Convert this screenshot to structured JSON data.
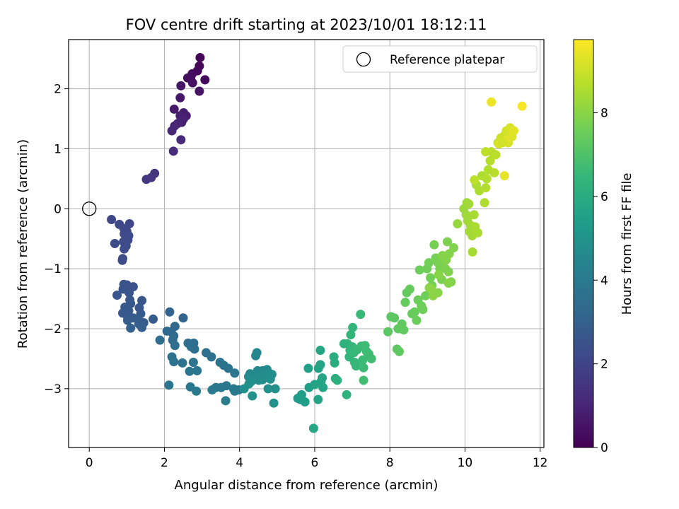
{
  "chart_data": {
    "type": "scatter",
    "title": "FOV centre drift starting at 2023/10/01 18:12:11",
    "xlabel": "Angular distance from reference (arcmin)",
    "ylabel": "Rotation from reference (arcmin)",
    "xlim": [
      -0.55,
      12.1
    ],
    "ylim": [
      -3.98,
      2.82
    ],
    "xticks": [
      0,
      2,
      4,
      6,
      8,
      10,
      12
    ],
    "yticks": [
      -3,
      -2,
      -1,
      0,
      1,
      2
    ],
    "grid": true,
    "legend": {
      "position": "top-right",
      "entries": [
        "Reference platepar"
      ]
    },
    "reference_point": {
      "x": 0,
      "y": 0
    },
    "colorbar": {
      "label": "Hours from first FF file",
      "range": [
        0,
        9.75
      ],
      "ticks": [
        0,
        2,
        4,
        6,
        8
      ],
      "colormap": "viridis"
    },
    "colormap_stops": [
      "#440154",
      "#482878",
      "#3e4989",
      "#31688e",
      "#26828e",
      "#1f9e89",
      "#35b779",
      "#6ece58",
      "#b5de2b",
      "#fde725"
    ],
    "series_points": [
      [
        2.95,
        2.52,
        0.1
      ],
      [
        2.93,
        2.38,
        0.15
      ],
      [
        2.88,
        2.3,
        0.2
      ],
      [
        2.74,
        2.25,
        0.3
      ],
      [
        2.7,
        2.18,
        0.35
      ],
      [
        2.62,
        2.18,
        0.4
      ],
      [
        3.08,
        2.15,
        0.25
      ],
      [
        2.75,
        2.1,
        0.45
      ],
      [
        2.44,
        2.05,
        0.55
      ],
      [
        2.93,
        1.96,
        0.5
      ],
      [
        2.42,
        1.85,
        0.6
      ],
      [
        2.26,
        1.66,
        0.7
      ],
      [
        2.51,
        1.6,
        0.8
      ],
      [
        2.42,
        1.55,
        0.85
      ],
      [
        2.58,
        1.55,
        0.8
      ],
      [
        2.51,
        1.5,
        0.9
      ],
      [
        2.46,
        1.44,
        0.95
      ],
      [
        2.35,
        1.42,
        1.0
      ],
      [
        2.27,
        1.38,
        1.05
      ],
      [
        2.2,
        1.3,
        1.1
      ],
      [
        2.44,
        1.15,
        1.15
      ],
      [
        2.24,
        0.96,
        1.2
      ],
      [
        1.74,
        0.59,
        1.5
      ],
      [
        1.65,
        0.52,
        1.55
      ],
      [
        1.52,
        0.49,
        1.6
      ],
      [
        0.59,
        -0.18,
        2.1
      ],
      [
        0.8,
        -0.26,
        2.12
      ],
      [
        1.07,
        -0.25,
        2.15
      ],
      [
        0.92,
        -0.33,
        2.16
      ],
      [
        1.0,
        -0.38,
        2.18
      ],
      [
        0.93,
        -0.42,
        2.2
      ],
      [
        1.05,
        -0.45,
        2.2
      ],
      [
        1.03,
        -0.52,
        2.22
      ],
      [
        0.91,
        -0.55,
        2.24
      ],
      [
        0.68,
        -0.58,
        2.26
      ],
      [
        0.98,
        -0.62,
        2.27
      ],
      [
        0.93,
        -0.67,
        2.28
      ],
      [
        0.89,
        -0.83,
        2.3
      ],
      [
        0.88,
        -0.86,
        2.3
      ],
      [
        0.92,
        -1.26,
        2.5
      ],
      [
        1.0,
        -1.27,
        2.52
      ],
      [
        1.17,
        -1.3,
        2.55
      ],
      [
        0.9,
        -1.34,
        2.56
      ],
      [
        1.06,
        -1.4,
        2.58
      ],
      [
        0.74,
        -1.44,
        2.6
      ],
      [
        1.08,
        -1.52,
        2.62
      ],
      [
        1.4,
        -1.53,
        2.64
      ],
      [
        1.1,
        -1.58,
        2.66
      ],
      [
        0.95,
        -1.64,
        2.68
      ],
      [
        1.33,
        -1.65,
        2.7
      ],
      [
        1.05,
        -1.7,
        2.72
      ],
      [
        0.89,
        -1.74,
        2.74
      ],
      [
        1.37,
        -1.75,
        2.76
      ],
      [
        1.02,
        -1.8,
        2.78
      ],
      [
        1.17,
        -1.82,
        2.8
      ],
      [
        1.3,
        -1.84,
        2.82
      ],
      [
        1.7,
        -1.84,
        2.84
      ],
      [
        1.02,
        -1.86,
        2.86
      ],
      [
        1.45,
        -1.9,
        2.88
      ],
      [
        1.32,
        -1.92,
        2.9
      ],
      [
        1.4,
        -1.98,
        2.92
      ],
      [
        1.1,
        -1.99,
        2.94
      ],
      [
        2.14,
        -1.72,
        3.1
      ],
      [
        2.5,
        -1.82,
        3.15
      ],
      [
        2.28,
        -1.96,
        3.2
      ],
      [
        2.07,
        -2.04,
        3.25
      ],
      [
        2.18,
        -2.05,
        3.3
      ],
      [
        2.25,
        -2.12,
        3.35
      ],
      [
        1.88,
        -2.19,
        3.4
      ],
      [
        2.22,
        -2.19,
        3.42
      ],
      [
        2.63,
        -2.24,
        3.45
      ],
      [
        2.78,
        -2.24,
        3.48
      ],
      [
        2.28,
        -2.28,
        3.5
      ],
      [
        2.71,
        -2.3,
        3.52
      ],
      [
        2.8,
        -2.34,
        3.55
      ],
      [
        3.11,
        -2.4,
        3.58
      ],
      [
        2.2,
        -2.47,
        3.6
      ],
      [
        3.25,
        -2.47,
        3.62
      ],
      [
        2.25,
        -2.55,
        3.65
      ],
      [
        2.48,
        -2.57,
        3.68
      ],
      [
        2.77,
        -2.56,
        3.7
      ],
      [
        3.48,
        -2.56,
        3.72
      ],
      [
        3.58,
        -2.61,
        3.74
      ],
      [
        3.7,
        -2.66,
        3.76
      ],
      [
        2.67,
        -2.71,
        3.78
      ],
      [
        2.87,
        -2.7,
        3.8
      ],
      [
        3.87,
        -2.74,
        3.82
      ],
      [
        2.12,
        -2.94,
        3.84
      ],
      [
        2.69,
        -2.97,
        3.86
      ],
      [
        3.37,
        -2.98,
        3.88
      ],
      [
        3.51,
        -2.98,
        3.9
      ],
      [
        3.65,
        -2.95,
        3.92
      ],
      [
        3.84,
        -3.0,
        3.94
      ],
      [
        3.98,
        -3.02,
        3.96
      ],
      [
        2.85,
        -3.04,
        3.98
      ],
      [
        3.27,
        -3.02,
        4.0
      ],
      [
        3.87,
        -3.04,
        4.02
      ],
      [
        3.63,
        -3.2,
        4.04
      ],
      [
        4.46,
        -2.4,
        4.5
      ],
      [
        4.43,
        -2.45,
        4.52
      ],
      [
        4.28,
        -2.75,
        4.55
      ],
      [
        4.48,
        -2.7,
        4.58
      ],
      [
        4.61,
        -2.7,
        4.6
      ],
      [
        4.73,
        -2.68,
        4.62
      ],
      [
        4.24,
        -2.8,
        4.64
      ],
      [
        4.43,
        -2.78,
        4.66
      ],
      [
        4.54,
        -2.77,
        4.68
      ],
      [
        4.64,
        -2.78,
        4.7
      ],
      [
        4.37,
        -2.85,
        4.72
      ],
      [
        4.51,
        -2.86,
        4.74
      ],
      [
        4.61,
        -2.85,
        4.76
      ],
      [
        4.78,
        -2.74,
        4.78
      ],
      [
        4.86,
        -2.76,
        4.8
      ],
      [
        4.82,
        -2.84,
        4.82
      ],
      [
        4.31,
        -2.88,
        4.84
      ],
      [
        4.25,
        -2.92,
        4.86
      ],
      [
        4.12,
        -3.0,
        4.88
      ],
      [
        4.76,
        -3.0,
        4.9
      ],
      [
        4.95,
        -3.0,
        4.92
      ],
      [
        4.34,
        -3.12,
        4.94
      ],
      [
        4.91,
        -3.24,
        4.96
      ],
      [
        5.55,
        -3.16,
        5.3
      ],
      [
        5.62,
        -3.18,
        5.35
      ],
      [
        5.65,
        -3.1,
        5.4
      ],
      [
        5.85,
        -2.98,
        5.45
      ],
      [
        5.74,
        -3.22,
        5.5
      ],
      [
        5.83,
        -2.66,
        5.55
      ],
      [
        6.0,
        -2.93,
        5.6
      ],
      [
        6.1,
        -2.66,
        5.62
      ],
      [
        6.09,
        -3.18,
        5.64
      ],
      [
        6.15,
        -2.6,
        5.66
      ],
      [
        6.17,
        -2.88,
        5.68
      ],
      [
        6.2,
        -2.82,
        5.7
      ],
      [
        6.22,
        -2.98,
        5.72
      ],
      [
        6.15,
        -2.36,
        5.74
      ],
      [
        5.97,
        -3.66,
        5.76
      ],
      [
        6.51,
        -2.47,
        6.0
      ],
      [
        6.53,
        -2.57,
        6.05
      ],
      [
        6.55,
        -2.83,
        6.1
      ],
      [
        6.6,
        -2.86,
        6.15
      ],
      [
        6.78,
        -2.25,
        6.2
      ],
      [
        6.85,
        -3.1,
        6.25
      ],
      [
        6.87,
        -2.25,
        6.3
      ],
      [
        6.92,
        -2.47,
        6.35
      ],
      [
        6.94,
        -2.36,
        6.38
      ],
      [
        6.96,
        -2.1,
        6.4
      ],
      [
        7.01,
        -1.98,
        6.42
      ],
      [
        7.0,
        -2.3,
        6.45
      ],
      [
        7.04,
        -2.4,
        6.48
      ],
      [
        7.06,
        -2.56,
        6.5
      ],
      [
        7.1,
        -2.62,
        6.52
      ],
      [
        7.13,
        -2.35,
        6.55
      ],
      [
        7.22,
        -1.76,
        6.58
      ],
      [
        7.24,
        -2.29,
        6.6
      ],
      [
        7.28,
        -2.52,
        6.62
      ],
      [
        7.3,
        -2.65,
        6.64
      ],
      [
        7.34,
        -2.28,
        6.66
      ],
      [
        7.38,
        -2.38,
        6.68
      ],
      [
        7.44,
        -2.42,
        6.7
      ],
      [
        7.51,
        -2.5,
        6.72
      ],
      [
        7.3,
        -2.86,
        6.74
      ],
      [
        7.95,
        -2.05,
        7.2
      ],
      [
        8.03,
        -1.8,
        7.22
      ],
      [
        8.12,
        -1.82,
        7.24
      ],
      [
        8.19,
        -2.34,
        7.26
      ],
      [
        8.22,
        -2.0,
        7.28
      ],
      [
        8.25,
        -2.38,
        7.3
      ],
      [
        8.3,
        -2.0,
        7.32
      ],
      [
        8.32,
        -1.92,
        7.34
      ],
      [
        8.37,
        -2.02,
        7.36
      ],
      [
        8.41,
        -1.56,
        7.38
      ],
      [
        8.45,
        -1.4,
        7.4
      ],
      [
        8.53,
        -1.34,
        7.42
      ],
      [
        8.59,
        -1.75,
        7.44
      ],
      [
        8.66,
        -1.72,
        7.46
      ],
      [
        8.71,
        -1.86,
        7.48
      ],
      [
        8.75,
        -1.52,
        7.5
      ],
      [
        8.79,
        -1.02,
        7.52
      ],
      [
        8.84,
        -1.62,
        7.54
      ],
      [
        8.88,
        -1.68,
        7.56
      ],
      [
        8.95,
        -1.45,
        7.58
      ],
      [
        8.99,
        -1.0,
        7.6
      ],
      [
        9.04,
        -0.9,
        7.62
      ],
      [
        9.08,
        -1.15,
        7.64
      ],
      [
        9.12,
        -1.28,
        7.66
      ],
      [
        9.18,
        -0.6,
        7.68
      ],
      [
        9.22,
        -0.82,
        7.7
      ],
      [
        9.28,
        -0.9,
        7.72
      ],
      [
        9.33,
        -1.0,
        7.74
      ],
      [
        9.38,
        -1.18,
        7.76
      ],
      [
        9.44,
        -0.88,
        7.78
      ],
      [
        9.48,
        -1.0,
        7.8
      ],
      [
        9.53,
        -0.55,
        7.82
      ],
      [
        9.56,
        -1.05,
        7.84
      ],
      [
        9.63,
        -1.22,
        7.86
      ],
      [
        9.7,
        -0.65,
        7.88
      ],
      [
        9.58,
        -0.75,
        7.9
      ],
      [
        9.4,
        -0.78,
        7.92
      ],
      [
        9.5,
        -0.85,
        7.94
      ],
      [
        9.56,
        -1.24,
        7.96
      ],
      [
        9.3,
        -1.1,
        7.98
      ],
      [
        9.28,
        -1.4,
        8.0
      ],
      [
        9.15,
        -1.45,
        8.02
      ],
      [
        9.1,
        -1.33,
        8.04
      ],
      [
        9.05,
        -1.32,
        8.06
      ],
      [
        9.8,
        -0.25,
        8.2
      ],
      [
        9.97,
        0.0,
        8.25
      ],
      [
        10.03,
        -0.1,
        8.3
      ],
      [
        10.05,
        0.1,
        8.32
      ],
      [
        10.07,
        -0.2,
        8.34
      ],
      [
        10.1,
        0.08,
        8.36
      ],
      [
        10.12,
        -0.38,
        8.38
      ],
      [
        10.15,
        -0.28,
        8.4
      ],
      [
        10.19,
        -0.45,
        8.42
      ],
      [
        10.2,
        -0.72,
        8.44
      ],
      [
        10.24,
        -0.1,
        8.46
      ],
      [
        10.27,
        -0.3,
        8.48
      ],
      [
        10.3,
        0.4,
        8.5
      ],
      [
        10.34,
        -0.4,
        8.52
      ],
      [
        10.38,
        0.3,
        8.54
      ],
      [
        10.45,
        0.55,
        8.56
      ],
      [
        10.52,
        0.1,
        8.58
      ],
      [
        10.55,
        0.35,
        8.6
      ],
      [
        10.58,
        0.5,
        8.62
      ],
      [
        10.62,
        0.65,
        8.64
      ],
      [
        10.67,
        0.8,
        8.66
      ],
      [
        10.7,
        0.95,
        8.68
      ],
      [
        10.78,
        0.6,
        8.7
      ],
      [
        10.82,
        0.9,
        8.72
      ],
      [
        10.88,
        1.1,
        8.74
      ],
      [
        10.25,
        0.48,
        8.76
      ],
      [
        10.55,
        0.95,
        8.78
      ],
      [
        10.95,
        1.18,
        9.0
      ],
      [
        11.05,
        1.22,
        9.05
      ],
      [
        11.1,
        1.3,
        9.1
      ],
      [
        11.15,
        1.1,
        9.15
      ],
      [
        11.2,
        1.35,
        9.2
      ],
      [
        11.25,
        1.2,
        9.25
      ],
      [
        11.12,
        1.15,
        9.3
      ],
      [
        11.3,
        1.3,
        9.35
      ],
      [
        11.05,
        0.55,
        9.4
      ],
      [
        10.7,
        1.78,
        9.5
      ],
      [
        11.52,
        1.71,
        9.65
      ],
      [
        10.9,
        1.08,
        9.2
      ],
      [
        11.0,
        1.1,
        9.1
      ]
    ]
  }
}
